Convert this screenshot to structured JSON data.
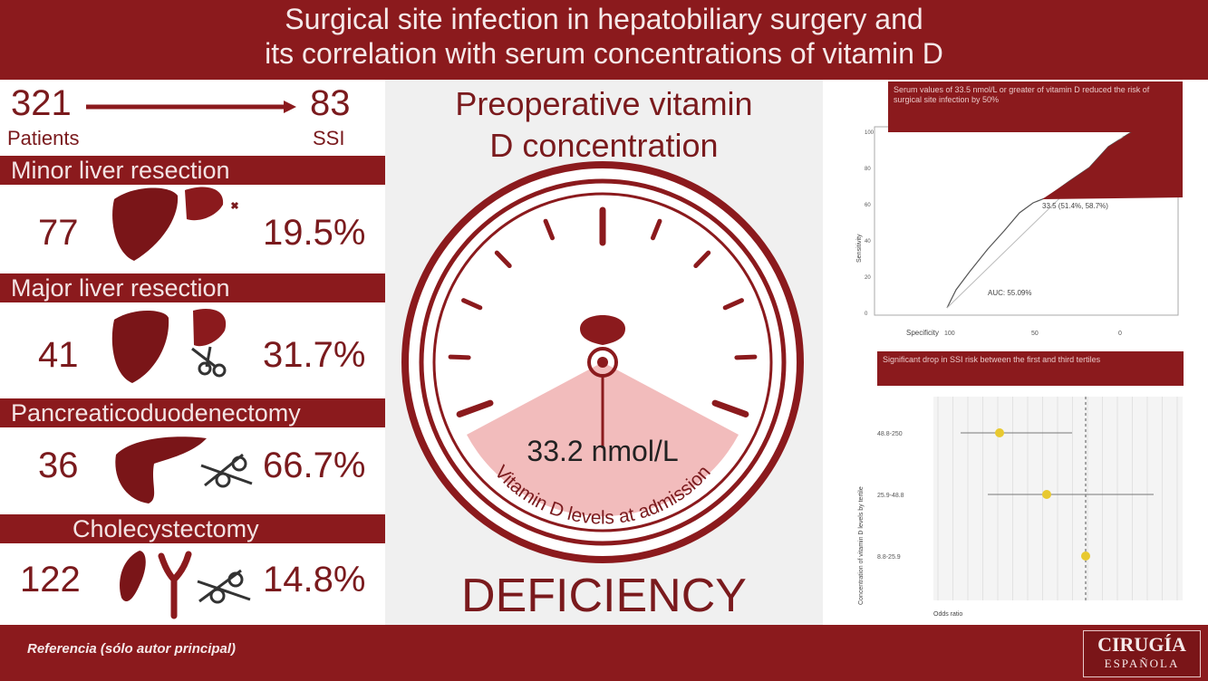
{
  "header": {
    "title_line1": "Surgical site infection in hepatobiliary surgery and",
    "title_line2": "its correlation with serum concentrations of vitamin D"
  },
  "summary": {
    "patients_count": "321",
    "patients_label": "Patients",
    "ssi_count": "83",
    "ssi_label": "SSI"
  },
  "procedures": [
    {
      "name": "Minor liver resection",
      "count": "77",
      "ssi_rate": "19.5%"
    },
    {
      "name": "Major liver resection",
      "count": "41",
      "ssi_rate": "31.7%"
    },
    {
      "name": "Pancreaticoduodenectomy",
      "count": "36",
      "ssi_rate": "66.7%"
    },
    {
      "name": "Cholecystectomy",
      "count": "122",
      "ssi_rate": "14.8%"
    }
  ],
  "gauge": {
    "title_line1": "Preoperative vitamin",
    "title_line2": "D concentration",
    "value": "33.2 nmol/L",
    "arc_label": "Vitamin D levels at admission",
    "status": "DEFICIENCY"
  },
  "roc_panel": {
    "caption": "Serum values of 33.5 nmol/L or greater of vitamin D reduced the risk of surgical site infection by 50%",
    "cutoff_label": "33.5 (51.4%, 58.7%)",
    "auc_label": "AUC: 55.09%",
    "xlabel": "Specificity",
    "ylabel": "Sensitivity",
    "x_ticks": [
      "100",
      "50",
      "0"
    ],
    "y_ticks": [
      "100",
      "80",
      "60",
      "40",
      "20",
      "0"
    ]
  },
  "forest_panel": {
    "caption": "Significant drop in SSI risk between the first and third tertiles",
    "rows": [
      {
        "label": "48.8-250"
      },
      {
        "label": "25.9-48.8"
      },
      {
        "label": "8.8-25.9"
      }
    ],
    "xlabel": "Odds ratio",
    "ylabel": "Concentration of vitamin D levels by tertile"
  },
  "footer": {
    "reference": "Referencia (sólo autor principal)",
    "journal_line1": "CIRUGÍA",
    "journal_line2": "ESPAÑOLA"
  },
  "colors": {
    "brand": "#8b1a1d",
    "gauge_fill": "#f2bcbc",
    "forest_point": "#e8c930"
  }
}
